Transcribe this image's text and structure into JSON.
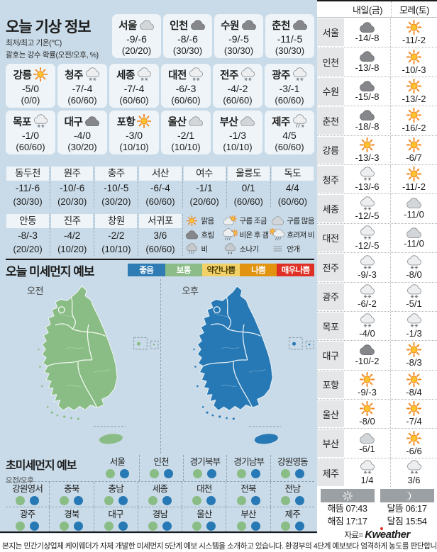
{
  "header": {
    "title": "오늘 기상 정보",
    "note1": "최저/최고 기온(℃)",
    "note2": "괄호는 강수 확률(오전/오후, %)"
  },
  "today_cards": {
    "rows": [
      {
        "cards": [
          {
            "city": "서울",
            "icon": "cloud",
            "temp": "-9/-6",
            "prob": "(20/20)"
          },
          {
            "city": "인천",
            "icon": "dark-cloud",
            "temp": "-8/-6",
            "prob": "(30/30)"
          },
          {
            "city": "수원",
            "icon": "dark-cloud",
            "temp": "-9/-5",
            "prob": "(30/30)"
          },
          {
            "city": "춘천",
            "icon": "dark-cloud",
            "temp": "-11/-5",
            "prob": "(30/30)"
          }
        ]
      },
      {
        "cards": [
          {
            "city": "강릉",
            "icon": "sun",
            "temp": "-5/0",
            "prob": "(0/0)"
          },
          {
            "city": "청주",
            "icon": "snow",
            "temp": "-7/-4",
            "prob": "(60/60)"
          },
          {
            "city": "세종",
            "icon": "snow",
            "temp": "-7/-4",
            "prob": "(60/60)"
          },
          {
            "city": "대전",
            "icon": "snow",
            "temp": "-6/-3",
            "prob": "(60/60)"
          },
          {
            "city": "전주",
            "icon": "snow",
            "temp": "-4/-2",
            "prob": "(60/60)"
          },
          {
            "city": "광주",
            "icon": "snow",
            "temp": "-3/-1",
            "prob": "(60/60)"
          }
        ]
      },
      {
        "cards": [
          {
            "city": "목포",
            "icon": "snow",
            "temp": "-1/0",
            "prob": "(60/60)"
          },
          {
            "city": "대구",
            "icon": "dark-cloud",
            "temp": "-4/0",
            "prob": "(30/20)"
          },
          {
            "city": "포항",
            "icon": "sun",
            "temp": "-3/0",
            "prob": "(10/10)"
          },
          {
            "city": "울산",
            "icon": "cloud",
            "temp": "-2/1",
            "prob": "(10/10)"
          },
          {
            "city": "부산",
            "icon": "cloud",
            "temp": "-1/3",
            "prob": "(10/10)"
          },
          {
            "city": "제주",
            "icon": "sleet",
            "temp": "4/5",
            "prob": "(60/60)"
          }
        ]
      }
    ]
  },
  "extra_table": {
    "group1": [
      {
        "city": "동두천",
        "temp": "-11/-6",
        "prob": "(30/30)"
      },
      {
        "city": "원주",
        "temp": "-10/-6",
        "prob": "(20/30)"
      },
      {
        "city": "충주",
        "temp": "-10/-5",
        "prob": "(30/20)"
      },
      {
        "city": "서산",
        "temp": "-6/-4",
        "prob": "(60/60)"
      },
      {
        "city": "여수",
        "temp": "-1/1",
        "prob": "(20/60)"
      },
      {
        "city": "울릉도",
        "temp": "0/1",
        "prob": "(60/60)"
      },
      {
        "city": "독도",
        "temp": "4/4",
        "prob": "(60/60)"
      }
    ],
    "group2": [
      {
        "city": "안동",
        "temp": "-8/-3",
        "prob": "(20/20)"
      },
      {
        "city": "진주",
        "temp": "-4/2",
        "prob": "(10/20)"
      },
      {
        "city": "창원",
        "temp": "-2/2",
        "prob": "(10/10)"
      },
      {
        "city": "서귀포",
        "temp": "3/6",
        "prob": "(60/60)"
      }
    ],
    "legend": [
      {
        "icon": "sun",
        "label": "맑음"
      },
      {
        "icon": "sun-cloud",
        "label": "구름 조금"
      },
      {
        "icon": "cloud",
        "label": "구름 많음"
      },
      {
        "icon": "dark-cloud",
        "label": "흐림"
      },
      {
        "icon": "rain-sun",
        "label": "비온 후 갬"
      },
      {
        "icon": "sun-rain",
        "label": "흐려져 비"
      },
      {
        "icon": "rain",
        "label": "비"
      },
      {
        "icon": "shower",
        "label": "소나기"
      },
      {
        "icon": "fog",
        "label": "안개"
      }
    ]
  },
  "dust": {
    "title": "오늘 미세먼지 예보",
    "levels": [
      {
        "label": "좋음",
        "color": "#2f7cb5",
        "text": "#ffffff"
      },
      {
        "label": "보통",
        "color": "#8cbd88",
        "text": "#ffffff"
      },
      {
        "label": "약간나쁨",
        "color": "#f2d268",
        "text": "#4a3d05"
      },
      {
        "label": "나쁨",
        "color": "#e2930f",
        "text": "#ffffff"
      },
      {
        "label": "매우나쁨",
        "color": "#df3026",
        "text": "#ffffff"
      }
    ],
    "maps": [
      {
        "label": "오전",
        "color": "#8abd85"
      },
      {
        "label": "오후",
        "color": "#2779b5"
      }
    ]
  },
  "ultra_dust": {
    "title": "초미세먼지 예보",
    "subtitle": "오전/오후",
    "am_color": "#8abd85",
    "pm_color": "#2779b5",
    "rows": [
      [
        "서울",
        "인천",
        "경기북부",
        "경기남부",
        "강원영동"
      ],
      [
        "강원영서",
        "충북",
        "충남",
        "세종",
        "대전",
        "전북",
        "전남"
      ],
      [
        "광주",
        "경북",
        "대구",
        "경남",
        "울산",
        "부산",
        "제주"
      ]
    ]
  },
  "forecast_table": {
    "headers": [
      "내일(금)",
      "모레(토)"
    ],
    "rows": [
      {
        "city": "서울",
        "d1": {
          "icon": "dark-cloud",
          "temp": "-14/-8"
        },
        "d2": {
          "icon": "sun",
          "temp": "-11/-2"
        }
      },
      {
        "city": "인천",
        "d1": {
          "icon": "dark-cloud",
          "temp": "-13/-8"
        },
        "d2": {
          "icon": "sun",
          "temp": "-10/-3"
        }
      },
      {
        "city": "수원",
        "d1": {
          "icon": "dark-cloud",
          "temp": "-15/-8"
        },
        "d2": {
          "icon": "sun",
          "temp": "-13/-2"
        }
      },
      {
        "city": "춘천",
        "d1": {
          "icon": "dark-cloud",
          "temp": "-18/-8"
        },
        "d2": {
          "icon": "sun",
          "temp": "-16/-2"
        }
      },
      {
        "city": "강릉",
        "d1": {
          "icon": "sun",
          "temp": "-13/-3"
        },
        "d2": {
          "icon": "sun",
          "temp": "-6/7"
        }
      },
      {
        "city": "청주",
        "d1": {
          "icon": "snow",
          "temp": "-13/-6"
        },
        "d2": {
          "icon": "sun",
          "temp": "-11/-2"
        }
      },
      {
        "city": "세종",
        "d1": {
          "icon": "snow",
          "temp": "-12/-5"
        },
        "d2": {
          "icon": "cloud",
          "temp": "-11/0"
        }
      },
      {
        "city": "대전",
        "d1": {
          "icon": "snow",
          "temp": "-12/-5"
        },
        "d2": {
          "icon": "cloud",
          "temp": "-11/0"
        }
      },
      {
        "city": "전주",
        "d1": {
          "icon": "snow",
          "temp": "-9/-3"
        },
        "d2": {
          "icon": "snow",
          "temp": "-8/0"
        }
      },
      {
        "city": "광주",
        "d1": {
          "icon": "snow",
          "temp": "-6/-2"
        },
        "d2": {
          "icon": "snow",
          "temp": "-5/1"
        }
      },
      {
        "city": "목포",
        "d1": {
          "icon": "snow",
          "temp": "-4/0"
        },
        "d2": {
          "icon": "snow",
          "temp": "-1/3"
        }
      },
      {
        "city": "대구",
        "d1": {
          "icon": "dark-cloud",
          "temp": "-10/-2"
        },
        "d2": {
          "icon": "sun",
          "temp": "-8/3"
        }
      },
      {
        "city": "포항",
        "d1": {
          "icon": "sun",
          "temp": "-9/-3"
        },
        "d2": {
          "icon": "sun",
          "temp": "-8/4"
        }
      },
      {
        "city": "울산",
        "d1": {
          "icon": "sun",
          "temp": "-8/0"
        },
        "d2": {
          "icon": "sun",
          "temp": "-7/4"
        }
      },
      {
        "city": "부산",
        "d1": {
          "icon": "cloud",
          "temp": "-6/1"
        },
        "d2": {
          "icon": "sun",
          "temp": "-6/6"
        }
      },
      {
        "city": "제주",
        "d1": {
          "icon": "snow",
          "temp": "1/4"
        },
        "d2": {
          "icon": "snow",
          "temp": "3/6"
        }
      }
    ]
  },
  "sun_moon": {
    "items": [
      {
        "icon": "sun-white",
        "rise_label": "해뜸",
        "rise": "07:43",
        "set_label": "해짐",
        "set": "17:17"
      },
      {
        "icon": "moon-white",
        "rise_label": "달뜸",
        "rise": "06:17",
        "set_label": "달짐",
        "set": "15:54"
      }
    ],
    "source_prefix": "자료=",
    "source_logo": "Kweather"
  },
  "footer": {
    "text": "본지는 민간기상업체 케이웨더가 자체 개발한 미세먼지 5단계 예보 시스템을 소개하고 있습니다. 환경부의 4단계 예보보다 엄격하게 농도를 판단합니다."
  }
}
